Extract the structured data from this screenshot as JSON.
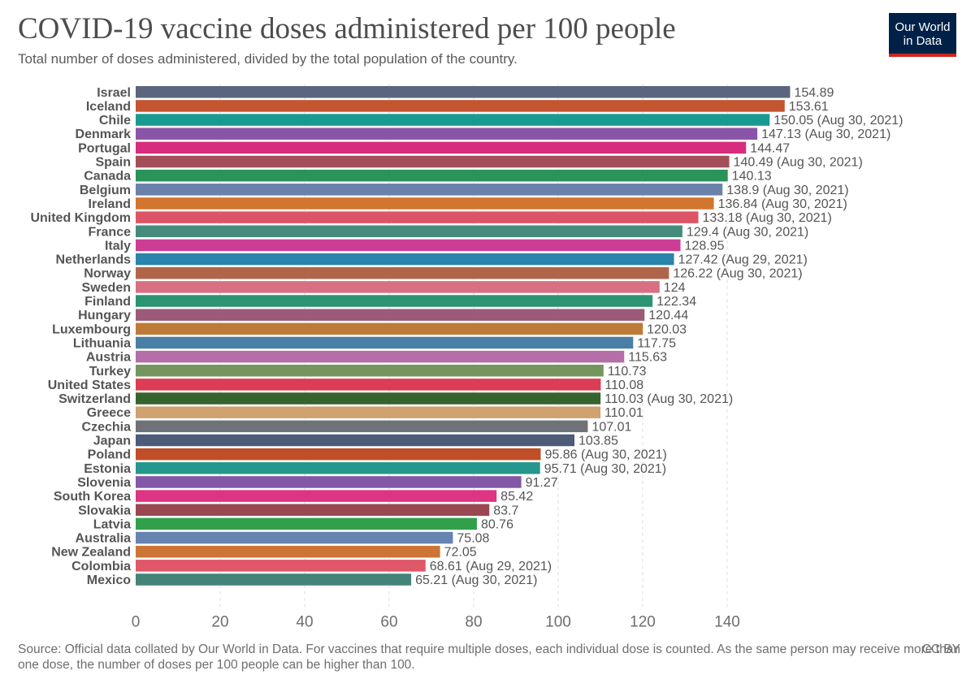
{
  "header": {
    "title": "COVID-19 vaccine doses administered per 100 people",
    "subtitle": "Total number of doses administered, divided by the total population of the country.",
    "logo": "Our World in Data"
  },
  "footer": {
    "source_note": "Source: Official data collated by Our World in Data. For vaccines that require multiple doses, each individual dose is counted. As the same person may receive more than one dose, the number of doses per 100 people can be higher than 100.",
    "license": "CC BY"
  },
  "chart_data": {
    "type": "bar",
    "orientation": "horizontal",
    "title": "COVID-19 vaccine doses administered per 100 people",
    "subtitle": "Total number of doses administered, divided by the total population of the country.",
    "xlabel": "",
    "ylabel": "",
    "xlim": [
      0,
      160
    ],
    "xticks": [
      "0",
      "20",
      "40",
      "60",
      "80",
      "100",
      "120",
      "140"
    ],
    "grid": "vertical dashed",
    "categories": [
      "Israel",
      "Iceland",
      "Chile",
      "Denmark",
      "Portugal",
      "Spain",
      "Canada",
      "Belgium",
      "Ireland",
      "United Kingdom",
      "France",
      "Italy",
      "Netherlands",
      "Norway",
      "Sweden",
      "Finland",
      "Hungary",
      "Luxembourg",
      "Lithuania",
      "Austria",
      "Turkey",
      "United States",
      "Switzerland",
      "Greece",
      "Czechia",
      "Japan",
      "Poland",
      "Estonia",
      "Slovenia",
      "South Korea",
      "Slovakia",
      "Latvia",
      "Australia",
      "New Zealand",
      "Colombia",
      "Mexico"
    ],
    "values": [
      154.89,
      153.61,
      150.05,
      147.13,
      144.47,
      140.49,
      140.13,
      138.9,
      136.84,
      133.18,
      129.4,
      128.95,
      127.42,
      126.22,
      124,
      122.34,
      120.44,
      120.03,
      117.75,
      115.63,
      110.73,
      110.08,
      110.03,
      110.01,
      107.01,
      103.85,
      95.86,
      95.71,
      91.27,
      85.42,
      83.7,
      80.76,
      75.08,
      72.05,
      68.61,
      65.21
    ],
    "labels": [
      "154.89",
      "153.61",
      "150.05 (Aug 30, 2021)",
      "147.13 (Aug 30, 2021)",
      "144.47",
      "140.49 (Aug 30, 2021)",
      "140.13",
      "138.9 (Aug 30, 2021)",
      "136.84 (Aug 30, 2021)",
      "133.18 (Aug 30, 2021)",
      "129.4 (Aug 30, 2021)",
      "128.95",
      "127.42 (Aug 29, 2021)",
      "126.22 (Aug 30, 2021)",
      "124",
      "122.34",
      "120.44",
      "120.03",
      "117.75",
      "115.63",
      "110.73",
      "110.08",
      "110.03 (Aug 30, 2021)",
      "110.01",
      "107.01",
      "103.85",
      "95.86 (Aug 30, 2021)",
      "95.71 (Aug 30, 2021)",
      "91.27",
      "85.42",
      "83.7",
      "80.76",
      "75.08",
      "72.05",
      "68.61 (Aug 29, 2021)",
      "65.21 (Aug 30, 2021)"
    ],
    "colors": [
      "#5b667e",
      "#c35530",
      "#199a90",
      "#8a55a8",
      "#d82c7f",
      "#a44e5a",
      "#2a935a",
      "#6a81ab",
      "#d2752f",
      "#dc5466",
      "#458b7b",
      "#cd3d96",
      "#2a84ab",
      "#b0654a",
      "#d67082",
      "#2b9470",
      "#9b5a78",
      "#c07a38",
      "#4a7fa5",
      "#b56ea8",
      "#74955e",
      "#dc3c54",
      "#36642f",
      "#cfa270",
      "#6f7278",
      "#4b5b78",
      "#c04e28",
      "#26978d",
      "#8157a6",
      "#de3483",
      "#9b4752",
      "#32a04a",
      "#6683b2",
      "#cd7535",
      "#e05768",
      "#438378"
    ]
  }
}
